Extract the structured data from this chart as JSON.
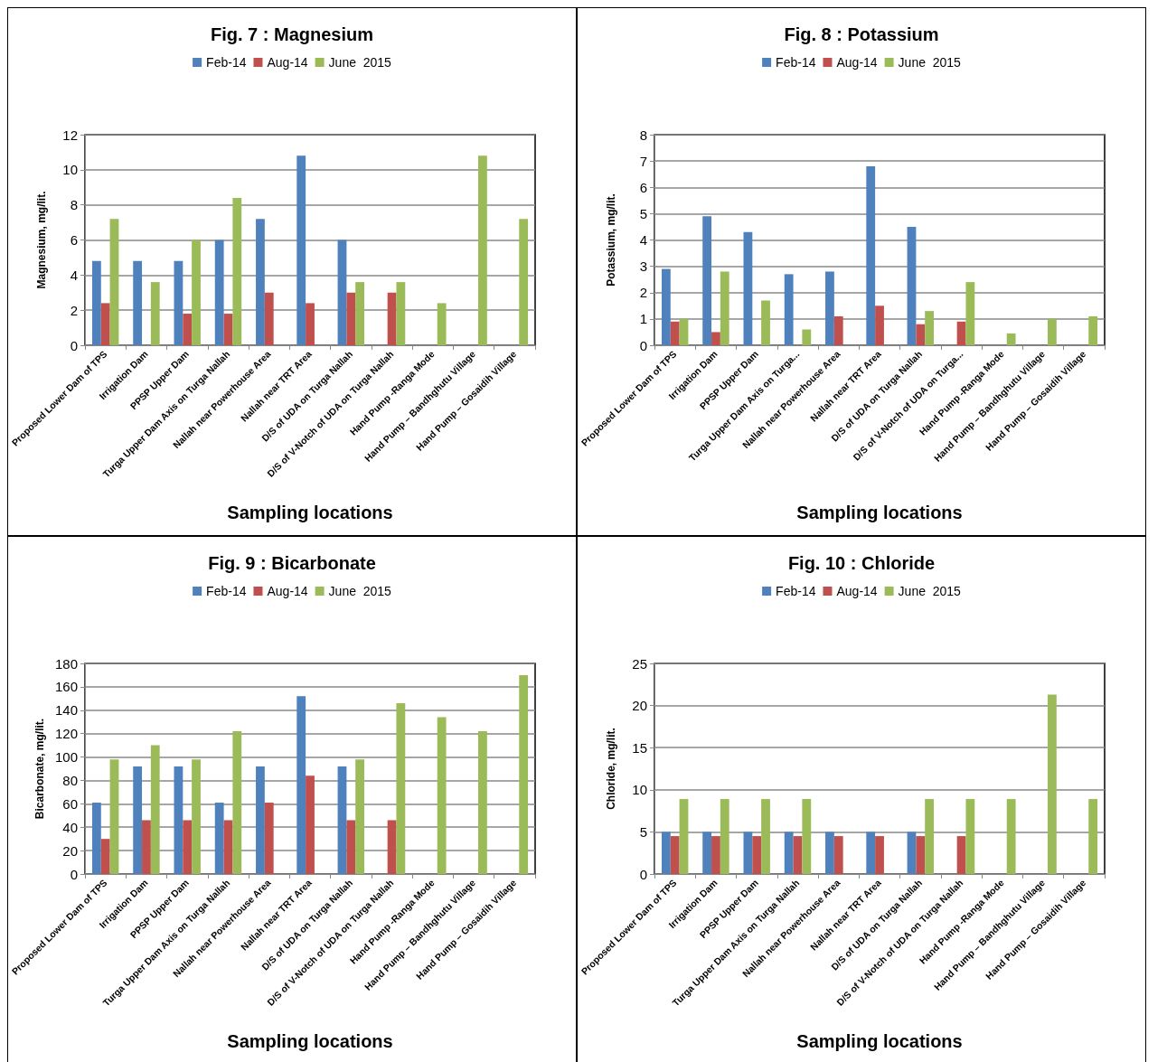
{
  "chart_data": [
    {
      "type": "bar",
      "title": "Fig. 7 : Magnesium",
      "xlabel": "Sampling locations",
      "ylabel": "Magnesium, mg/lit.",
      "categories": [
        "Proposed Lower Dam of TPS",
        "Irrigation Dam",
        "PPSP Upper Dam",
        "Turga Upper Dam Axis on Turga Nallah",
        "Nallah near Powerhouse Area",
        "Nallah near TRT Area",
        "D/S of UDA on Turga Nallah",
        "D/S of V-Notch of UDA on Turga Nallah",
        "Hand Pump -Ranga Mode",
        "Hand Pump – Bandhghutu Village",
        "Hand Pump – Gosaidih Village"
      ],
      "series": [
        {
          "name": "Feb-14",
          "color": "#4f81bd",
          "values": [
            4.8,
            4.8,
            4.8,
            6,
            7.2,
            10.8,
            6,
            null,
            null,
            null,
            null
          ]
        },
        {
          "name": "Aug-14",
          "color": "#c0504d",
          "values": [
            2.4,
            null,
            1.8,
            1.8,
            3,
            2.4,
            3,
            3,
            null,
            null,
            null
          ]
        },
        {
          "name": "June  2015",
          "color": "#9bbb59",
          "values": [
            7.2,
            3.6,
            6,
            8.4,
            null,
            null,
            3.6,
            3.6,
            2.4,
            10.8,
            7.2
          ]
        }
      ],
      "ylim": [
        0,
        12
      ],
      "yticks": [
        0,
        2,
        4,
        6,
        8,
        10,
        12
      ],
      "grid": "y",
      "legend": "top"
    },
    {
      "type": "bar",
      "title": "Fig. 8 : Potassium",
      "xlabel": "Sampling locations",
      "ylabel": "Potassium, mg/lit.",
      "categories": [
        "Proposed Lower Dam of TPS",
        "Irrigation Dam",
        "PPSP Upper Dam",
        "Turga Upper Dam Axis on Turga...",
        "Nallah near Powerhouse Area",
        "Nallah near TRT Area",
        "D/S of UDA on Turga Nallah",
        "D/S of V-Notch of UDA on Turga...",
        "Hand Pump -Ranga Mode",
        "Hand Pump – Bandhghutu Village",
        "Hand Pump – Gosaidih Village"
      ],
      "series": [
        {
          "name": "Feb-14",
          "color": "#4f81bd",
          "values": [
            2.9,
            4.9,
            4.3,
            2.7,
            2.8,
            6.8,
            4.5,
            null,
            null,
            null,
            null
          ]
        },
        {
          "name": "Aug-14",
          "color": "#c0504d",
          "values": [
            0.9,
            0.5,
            null,
            null,
            1.1,
            1.5,
            0.8,
            0.9,
            null,
            null,
            null
          ]
        },
        {
          "name": "June  2015",
          "color": "#9bbb59",
          "values": [
            1.0,
            2.8,
            1.7,
            0.6,
            null,
            null,
            1.3,
            2.4,
            0.45,
            1.0,
            1.1
          ]
        }
      ],
      "ylim": [
        0,
        8
      ],
      "yticks": [
        0,
        1,
        2,
        3,
        4,
        5,
        6,
        7,
        8
      ],
      "grid": "y",
      "legend": "top"
    },
    {
      "type": "bar",
      "title": "Fig. 9 : Bicarbonate",
      "xlabel": "Sampling locations",
      "ylabel": "Bicarbonate, mg/lit.",
      "categories": [
        "Proposed Lower Dam of TPS",
        "Irrigation Dam",
        "PPSP Upper Dam",
        "Turga Upper Dam Axis on Turga Nallah",
        "Nallah near Powerhouse Area",
        "Nallah near TRT Area",
        "D/S of UDA on Turga Nallah",
        "D/S of V-Notch of UDA on Turga Nallah",
        "Hand Pump -Ranga Mode",
        "Hand Pump – Bandhghutu Village",
        "Hand Pump – Gosaidih Village"
      ],
      "series": [
        {
          "name": "Feb-14",
          "color": "#4f81bd",
          "values": [
            61,
            92,
            92,
            61,
            92,
            152,
            92,
            null,
            null,
            null,
            null
          ]
        },
        {
          "name": "Aug-14",
          "color": "#c0504d",
          "values": [
            30,
            46,
            46,
            46,
            61,
            84,
            46,
            46,
            null,
            null,
            null
          ]
        },
        {
          "name": "June  2015",
          "color": "#9bbb59",
          "values": [
            98,
            110,
            98,
            122,
            null,
            null,
            98,
            146,
            134,
            122,
            170
          ]
        }
      ],
      "ylim": [
        0,
        180
      ],
      "yticks": [
        0,
        20,
        40,
        60,
        80,
        100,
        120,
        140,
        160,
        180
      ],
      "grid": "y",
      "legend": "top"
    },
    {
      "type": "bar",
      "title": "Fig. 10 : Chloride",
      "xlabel": "Sampling locations",
      "ylabel": "Chloride, mg/lit.",
      "categories": [
        "Proposed Lower Dam of TPS",
        "Irrigation Dam",
        "PPSP Upper Dam",
        "Turga Upper Dam Axis on Turga Nallah",
        "Nallah near Powerhouse Area",
        "Nallah near TRT Area",
        "D/S of UDA on Turga Nallah",
        "D/S of V-Notch of UDA on Turga Nallah",
        "Hand Pump -Ranga Mode",
        "Hand Pump – Bandhghutu Village",
        "Hand Pump – Gosaidih Village"
      ],
      "series": [
        {
          "name": "Feb-14",
          "color": "#4f81bd",
          "values": [
            5,
            5,
            5,
            5,
            5,
            5,
            5,
            null,
            null,
            null,
            null
          ]
        },
        {
          "name": "Aug-14",
          "color": "#c0504d",
          "values": [
            4.5,
            4.5,
            4.5,
            4.5,
            4.5,
            4.5,
            4.5,
            4.5,
            null,
            null,
            null
          ]
        },
        {
          "name": "June  2015",
          "color": "#9bbb59",
          "values": [
            8.9,
            8.9,
            8.9,
            8.9,
            null,
            null,
            8.9,
            8.9,
            8.9,
            21.3,
            8.9
          ]
        }
      ],
      "ylim": [
        0,
        25
      ],
      "yticks": [
        0,
        5,
        10,
        15,
        20,
        25
      ],
      "grid": "y",
      "legend": "top"
    }
  ]
}
